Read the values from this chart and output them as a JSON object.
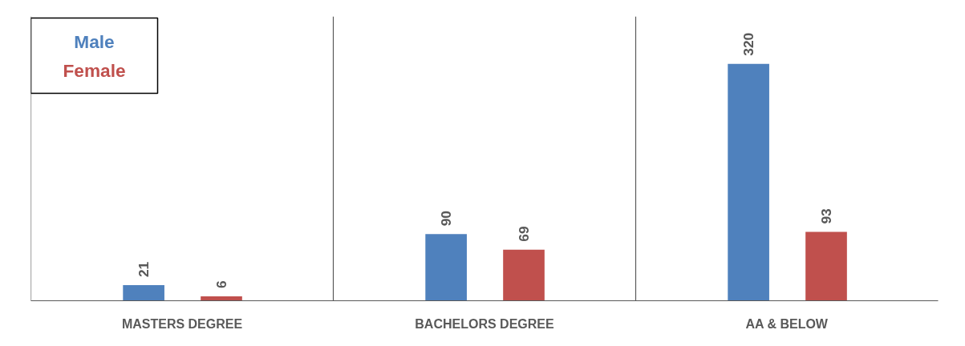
{
  "chart_data": {
    "type": "bar",
    "categories": [
      "MASTERS DEGREE",
      "BACHELORS DEGREE",
      "AA & BELOW"
    ],
    "series": [
      {
        "name": "Male",
        "color": "#4f81bd",
        "values": [
          21,
          90,
          320
        ]
      },
      {
        "name": "Female",
        "color": "#c0504d",
        "values": [
          6,
          69,
          93
        ]
      }
    ],
    "data_labels": true,
    "grid": "x",
    "legend": "top left"
  }
}
